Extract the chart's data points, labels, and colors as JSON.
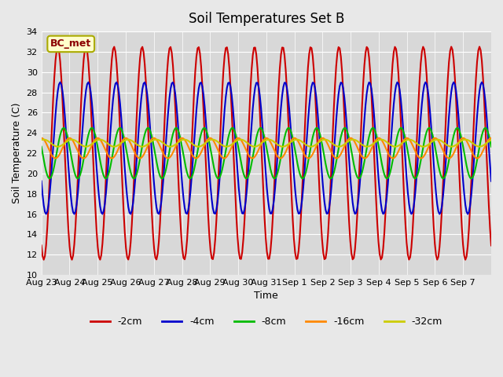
{
  "title": "Soil Temperatures Set B",
  "xlabel": "Time",
  "ylabel": "Soil Temperature (C)",
  "ylim": [
    10,
    34
  ],
  "yticks": [
    10,
    12,
    14,
    16,
    18,
    20,
    22,
    24,
    26,
    28,
    30,
    32,
    34
  ],
  "legend_label": "BC_met",
  "bg_color": "#e8e8e8",
  "plot_bg_color": "#d8d8d8",
  "series": {
    "-2cm": {
      "color": "#cc0000",
      "lw": 1.5
    },
    "-4cm": {
      "color": "#0000cc",
      "lw": 1.5
    },
    "-8cm": {
      "color": "#00bb00",
      "lw": 1.5
    },
    "-16cm": {
      "color": "#ff8800",
      "lw": 1.5
    },
    "-32cm": {
      "color": "#cccc00",
      "lw": 1.5
    }
  },
  "x_tick_labels": [
    "Aug 23",
    "Aug 24",
    "Aug 25",
    "Aug 26",
    "Aug 27",
    "Aug 28",
    "Aug 29",
    "Aug 30",
    "Aug 31",
    "Sep 1",
    "Sep 2",
    "Sep 3",
    "Sep 4",
    "Sep 5",
    "Sep 6",
    "Sep 7"
  ],
  "num_days": 16
}
